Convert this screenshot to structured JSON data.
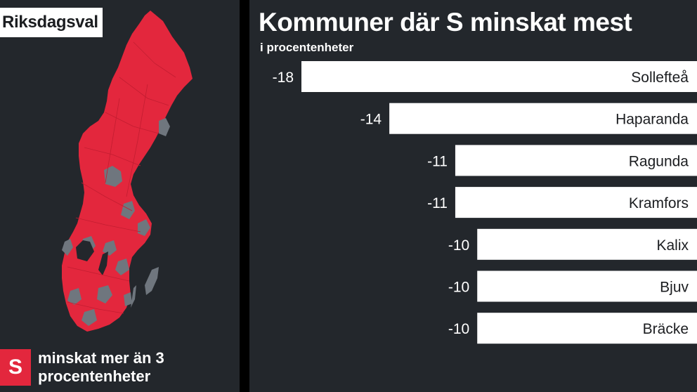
{
  "header": {
    "tag": "Riksdagsval"
  },
  "map": {
    "legend_symbol": "S",
    "legend_text": "minskat mer än 3 procentenheter",
    "colors": {
      "decreased": "#e3273d",
      "other": "#6f767e",
      "background": "#23272c"
    }
  },
  "chart_data": {
    "type": "bar",
    "orientation": "horizontal",
    "title": "Kommuner där S minskat mest",
    "subtitle": "i procentenheter",
    "categories": [
      "Sollefteå",
      "Haparanda",
      "Ragunda",
      "Kramfors",
      "Kalix",
      "Bjuv",
      "Bräcke"
    ],
    "values": [
      -18,
      -14,
      -11,
      -11,
      -10,
      -10,
      -10
    ],
    "value_labels": [
      "-18",
      "-14",
      "-11",
      "-11",
      "-10",
      "-10",
      "-10"
    ],
    "bar_color": "#ffffff",
    "xlim": [
      -18,
      0
    ],
    "grid": false,
    "legend": "none"
  }
}
